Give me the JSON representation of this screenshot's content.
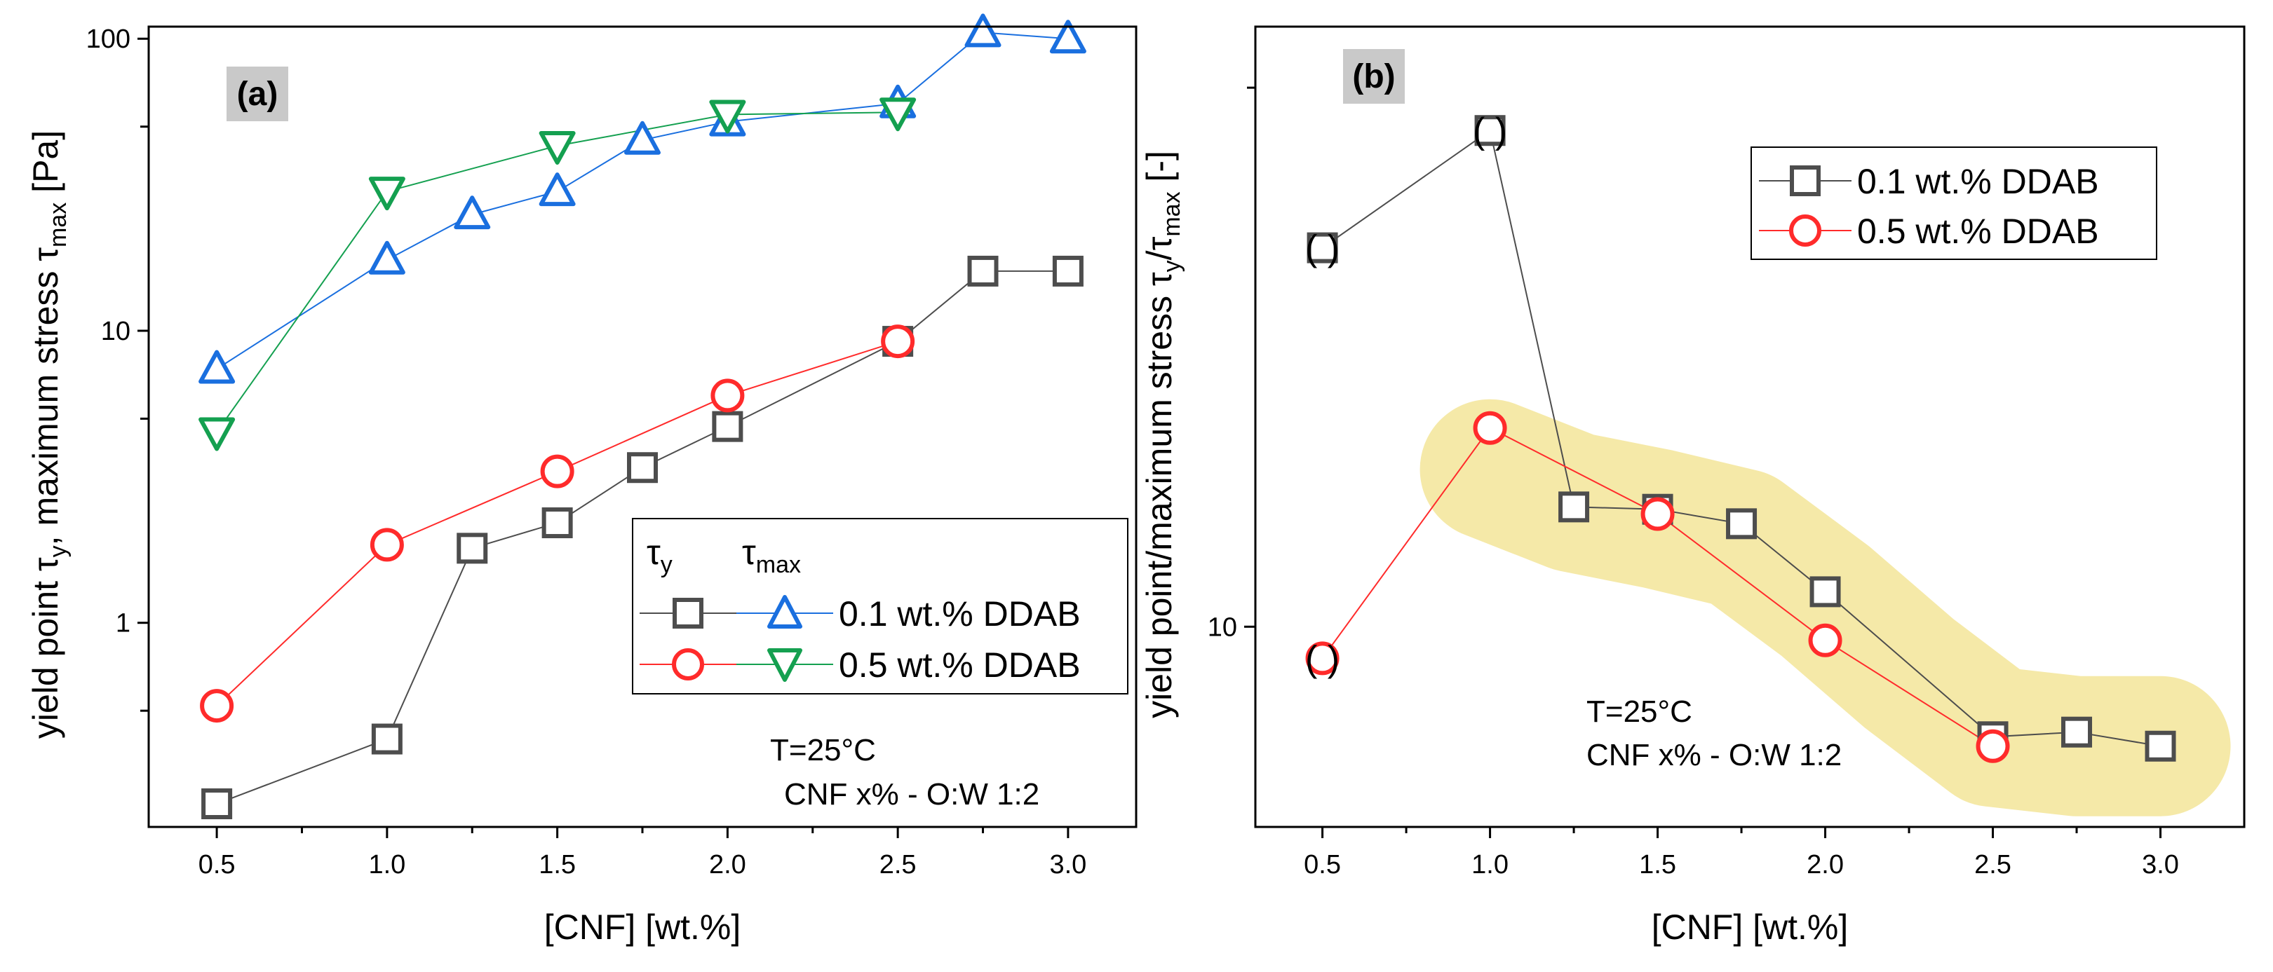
{
  "colors": {
    "black": "#4d4d4d",
    "red": "#ff2b2b",
    "blue": "#1a6fdf",
    "green": "#14a050",
    "highlight": "#f5e9a8",
    "panel_label_bg": "#c9c9c9"
  },
  "chart_data": [
    {
      "type": "line",
      "panel_label": "(a)",
      "xlabel": "[CNF] [wt.%]",
      "ylabel": {
        "part1": "yield point ",
        "tau": "τ",
        "sub_y": "y",
        "part2": ", maximum stress ",
        "sub_max": "max",
        "part3": " [Pa]"
      },
      "xlim": [
        0.3,
        3.2
      ],
      "ylim": [
        0.2,
        110
      ],
      "yscale": "log",
      "xticks": [
        "0.5",
        "1.0",
        "1.5",
        "2.0",
        "2.5",
        "3.0"
      ],
      "yticks": [
        "1",
        "10",
        "100"
      ],
      "legend": {
        "header_tau_y": {
          "tau": "τ",
          "sub": "y"
        },
        "header_tau_max": {
          "tau": "τ",
          "sub": "max"
        },
        "entries": [
          "0.1 wt.% DDAB",
          "0.5 wt.% DDAB"
        ],
        "position": "center-right"
      },
      "annotations": [
        "T=25°C",
        "CNF x% - O:W 1:2"
      ],
      "series": [
        {
          "name": "τy 0.1 wt.% DDAB",
          "marker": "square",
          "color": "black",
          "x": [
            0.5,
            1.0,
            1.25,
            1.5,
            1.75,
            2.0,
            2.5,
            2.75,
            3.0
          ],
          "values": [
            0.24,
            0.4,
            1.8,
            2.2,
            3.4,
            4.7,
            9.2,
            16,
            16
          ]
        },
        {
          "name": "τy 0.5 wt.% DDAB",
          "marker": "circle",
          "color": "red",
          "x": [
            0.5,
            1.0,
            1.5,
            2.0,
            2.5
          ],
          "values": [
            0.52,
            1.85,
            3.3,
            6.0,
            9.2
          ]
        },
        {
          "name": "τmax 0.1 wt.% DDAB",
          "marker": "triangle-up",
          "color": "blue",
          "x": [
            0.5,
            1.0,
            1.25,
            1.5,
            1.75,
            2.0,
            2.5,
            2.75,
            3.0
          ],
          "values": [
            7.4,
            17.5,
            25,
            30,
            45,
            52,
            60,
            105,
            100
          ]
        },
        {
          "name": "τmax 0.5 wt.% DDAB",
          "marker": "triangle-down",
          "color": "green",
          "x": [
            0.5,
            1.0,
            1.5,
            2.0,
            2.5
          ],
          "values": [
            4.5,
            30,
            43,
            55,
            56
          ]
        }
      ]
    },
    {
      "type": "line",
      "panel_label": "(b)",
      "xlabel": "[CNF] [wt.%]",
      "ylabel": {
        "part1": "yield point/maximum stress  ",
        "tau": "τ",
        "sub_y": "y",
        "slash": "/",
        "sub_max": "max",
        "part3": " [-]"
      },
      "xlim": [
        0.3,
        3.25
      ],
      "ylim": [
        5.5,
        60
      ],
      "yscale": "log",
      "xticks": [
        "0.5",
        "1.0",
        "1.5",
        "2.0",
        "2.5",
        "3.0"
      ],
      "yticks": [
        "10"
      ],
      "legend": {
        "entries": [
          "0.1 wt.% DDAB",
          "0.5 wt.% DDAB"
        ],
        "position": "top-right"
      },
      "annotations": [
        "T=25°C",
        "CNF x% - O:W 1:2"
      ],
      "paren_mark": "(  )",
      "paren_points": [
        {
          "x": 0.5,
          "y": 31
        },
        {
          "x": 1.0,
          "y": 44
        },
        {
          "x": 0.5,
          "y": 9.1
        }
      ],
      "series": [
        {
          "name": "0.1 wt.% DDAB",
          "marker": "square",
          "color": "black",
          "x": [
            0.5,
            1.0,
            1.25,
            1.5,
            1.75,
            2.0,
            2.5,
            2.75,
            3.0
          ],
          "values": [
            31,
            44,
            14.3,
            14.2,
            13.6,
            11.1,
            7.2,
            7.3,
            7.0
          ]
        },
        {
          "name": "0.5 wt.% DDAB",
          "marker": "circle",
          "color": "red",
          "x": [
            0.5,
            1.0,
            1.5,
            2.0,
            2.5
          ],
          "values": [
            9.1,
            18.1,
            14.0,
            9.6,
            7.0
          ]
        }
      ]
    }
  ]
}
